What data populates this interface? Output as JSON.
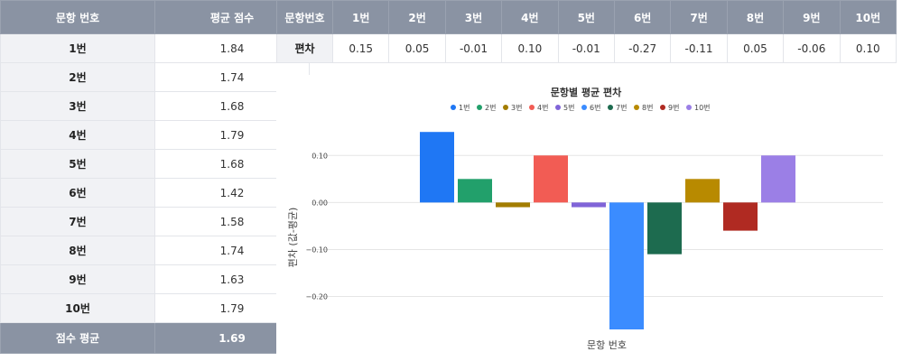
{
  "score_table": {
    "header": {
      "question_no": "문항 번호",
      "avg_score": "평균 점수"
    },
    "rows": [
      {
        "label": "1번",
        "value": "1.84"
      },
      {
        "label": "2번",
        "value": "1.74"
      },
      {
        "label": "3번",
        "value": "1.68"
      },
      {
        "label": "4번",
        "value": "1.79"
      },
      {
        "label": "5번",
        "value": "1.68"
      },
      {
        "label": "6번",
        "value": "1.42"
      },
      {
        "label": "7번",
        "value": "1.58"
      },
      {
        "label": "8번",
        "value": "1.74"
      },
      {
        "label": "9번",
        "value": "1.63"
      },
      {
        "label": "10번",
        "value": "1.79"
      }
    ],
    "footer": {
      "label": "점수 평균",
      "value": "1.69"
    }
  },
  "deviation_table": {
    "corner": "문항번호",
    "columns": [
      "1번",
      "2번",
      "3번",
      "4번",
      "5번",
      "6번",
      "7번",
      "8번",
      "9번",
      "10번"
    ],
    "row_label": "편차",
    "values": [
      "0.15",
      "0.05",
      "-0.01",
      "0.10",
      "-0.01",
      "-0.27",
      "-0.11",
      "0.05",
      "-0.06",
      "0.10"
    ]
  },
  "chart_data": {
    "type": "bar",
    "title": "문항별 평균 편차",
    "xlabel": "문항 번호",
    "ylabel": "편차 (값-평균)",
    "categories": [
      "1번",
      "2번",
      "3번",
      "4번",
      "5번",
      "6번",
      "7번",
      "8번",
      "9번",
      "10번"
    ],
    "values": [
      0.15,
      0.05,
      -0.01,
      0.1,
      -0.01,
      -0.27,
      -0.11,
      0.05,
      -0.06,
      0.1
    ],
    "colors": [
      "#1f77f4",
      "#22a06b",
      "#a37d00",
      "#f25c54",
      "#8064d8",
      "#3b8cff",
      "#1d6b4f",
      "#b88a00",
      "#b02a22",
      "#9b7fe6"
    ],
    "ylim": [
      -0.27,
      0.16
    ],
    "yticks": [
      0.1,
      0.0,
      -0.1,
      -0.2
    ],
    "ytick_labels": [
      "0.10",
      "0.00",
      "−0.10",
      "−0.20"
    ],
    "grid": true,
    "legend_position": "top-center"
  }
}
